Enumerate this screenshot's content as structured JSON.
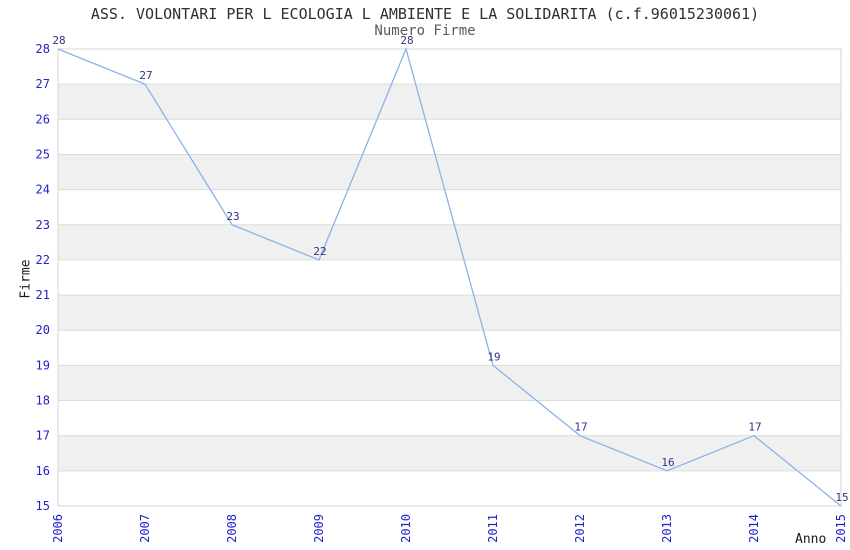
{
  "chart_data": {
    "type": "line",
    "title": "ASS. VOLONTARI PER L ECOLOGIA L AMBIENTE E LA SOLIDARITA (c.f.96015230061)",
    "subtitle": "Numero Firme",
    "xlabel": "Anno",
    "ylabel": "Firme",
    "categories": [
      "2006",
      "2007",
      "2008",
      "2009",
      "2010",
      "2011",
      "2012",
      "2013",
      "2014",
      "2015"
    ],
    "series": [
      {
        "name": "Numero Firme",
        "values": [
          28,
          27,
          23,
          22,
          28,
          19,
          17,
          16,
          17,
          15
        ]
      }
    ],
    "point_labels": [
      "28",
      "27",
      "23",
      "22",
      "28",
      "19",
      "17",
      "16",
      "17",
      "15"
    ],
    "ylim": [
      15,
      28
    ],
    "ytick_step": 1,
    "yticks": [
      "15",
      "16",
      "17",
      "18",
      "19",
      "20",
      "21",
      "22",
      "23",
      "24",
      "25",
      "26",
      "27",
      "28"
    ],
    "grid": "horizontal",
    "legend": "none",
    "background_bands": "alternating-horizontal",
    "colors": {
      "line": "#89b3e8",
      "tick_label": "#2222cc",
      "point_label": "#32327d",
      "band": "#f0f0f0",
      "grid_line": "#dcdcdc",
      "plot_border": "#d4d4d4",
      "plot_background": "#ffffff",
      "title": "#2f2f2f",
      "subtitle": "#595959",
      "axis_title": "#1a1a1a",
      "page_background": "#ffffff"
    }
  }
}
